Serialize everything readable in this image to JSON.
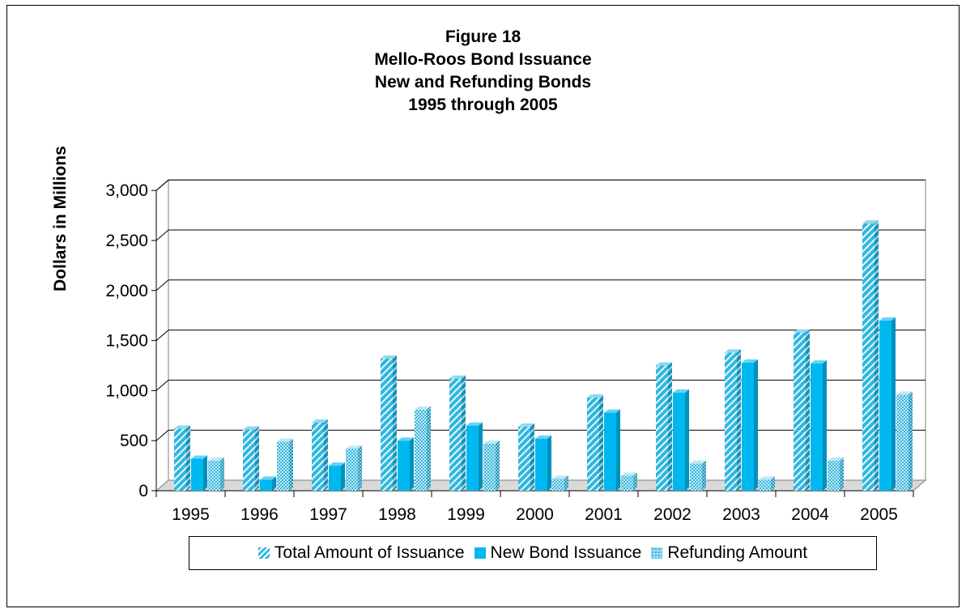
{
  "title_lines": [
    "Figure 18",
    "Mello-Roos Bond Issuance",
    "New and Refunding Bonds",
    "1995 through 2005"
  ],
  "colors": {
    "total": "#2FB7DF",
    "new": "#00B8F0",
    "refunding": "#5CC6E6",
    "floor": "#d9d9d9"
  },
  "icons": {
    "total": "diagonal-stripe-swatch",
    "new": "solid-cyan-swatch",
    "refunding": "checker-pattern-swatch"
  },
  "chart_data": {
    "type": "bar",
    "title": "Figure 18 Mello-Roos Bond Issuance New and Refunding Bonds 1995 through 2005",
    "xlabel": "",
    "ylabel": "Dollars in Millions",
    "ylim": [
      0,
      3000
    ],
    "yticks": [
      "0",
      "500",
      "1,000",
      "1,500",
      "2,000",
      "2,500",
      "3,000"
    ],
    "ytick_values": [
      0,
      500,
      1000,
      1500,
      2000,
      2500,
      3000
    ],
    "grid": true,
    "legend_position": "bottom",
    "categories": [
      "1995",
      "1996",
      "1997",
      "1998",
      "1999",
      "2000",
      "2001",
      "2002",
      "2003",
      "2004",
      "2005"
    ],
    "series": [
      {
        "name": "Total Amount of Issuance",
        "values": [
          620,
          610,
          680,
          1320,
          1120,
          640,
          930,
          1250,
          1380,
          1580,
          2670
        ]
      },
      {
        "name": "New Bond Issuance",
        "values": [
          320,
          110,
          250,
          500,
          650,
          520,
          780,
          980,
          1280,
          1270,
          1700
        ]
      },
      {
        "name": "Refunding Amount",
        "values": [
          300,
          490,
          420,
          810,
          470,
          120,
          150,
          270,
          110,
          300,
          960
        ]
      }
    ]
  }
}
